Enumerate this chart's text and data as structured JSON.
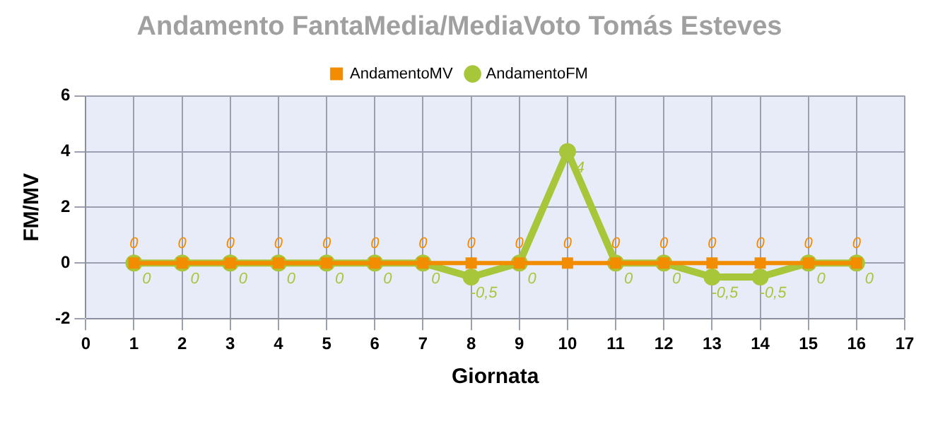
{
  "chart_data": {
    "type": "line",
    "title": "Andamento FantaMedia/MediaVoto Tomás Esteves",
    "xlabel": "Giornata",
    "ylabel": "FM/MV",
    "x": [
      1,
      2,
      3,
      4,
      5,
      6,
      7,
      8,
      9,
      10,
      11,
      12,
      13,
      14,
      15,
      16
    ],
    "series": [
      {
        "name": "AndamentoMV",
        "color": "#f28c00",
        "marker": "square",
        "values": [
          0,
          0,
          0,
          0,
          0,
          0,
          0,
          0,
          0,
          0,
          0,
          0,
          0,
          0,
          0,
          0
        ],
        "value_labels": [
          "0",
          "0",
          "0",
          "0",
          "0",
          "0",
          "0",
          "0",
          "0",
          "0",
          "0",
          "0",
          "0",
          "0",
          "0",
          "0"
        ]
      },
      {
        "name": "AndamentoFM",
        "color": "#a8c63a",
        "marker": "circle",
        "values": [
          0,
          0,
          0,
          0,
          0,
          0,
          0,
          -0.5,
          0,
          4,
          0,
          0,
          -0.5,
          -0.5,
          0,
          0
        ],
        "value_labels": [
          "0",
          "0",
          "0",
          "0",
          "0",
          "0",
          "0",
          "-0,5",
          "0",
          "4",
          "0",
          "0",
          "-0,5",
          "-0,5",
          "0",
          "0"
        ]
      }
    ],
    "xlim": [
      0,
      17
    ],
    "xticks": [
      0,
      1,
      2,
      3,
      4,
      5,
      6,
      7,
      8,
      9,
      10,
      11,
      12,
      13,
      14,
      15,
      16,
      17
    ],
    "ylim": [
      -2,
      6
    ],
    "yticks": [
      -2,
      0,
      2,
      4,
      6
    ],
    "grid": true,
    "legend": "top",
    "line_style": "solid"
  }
}
